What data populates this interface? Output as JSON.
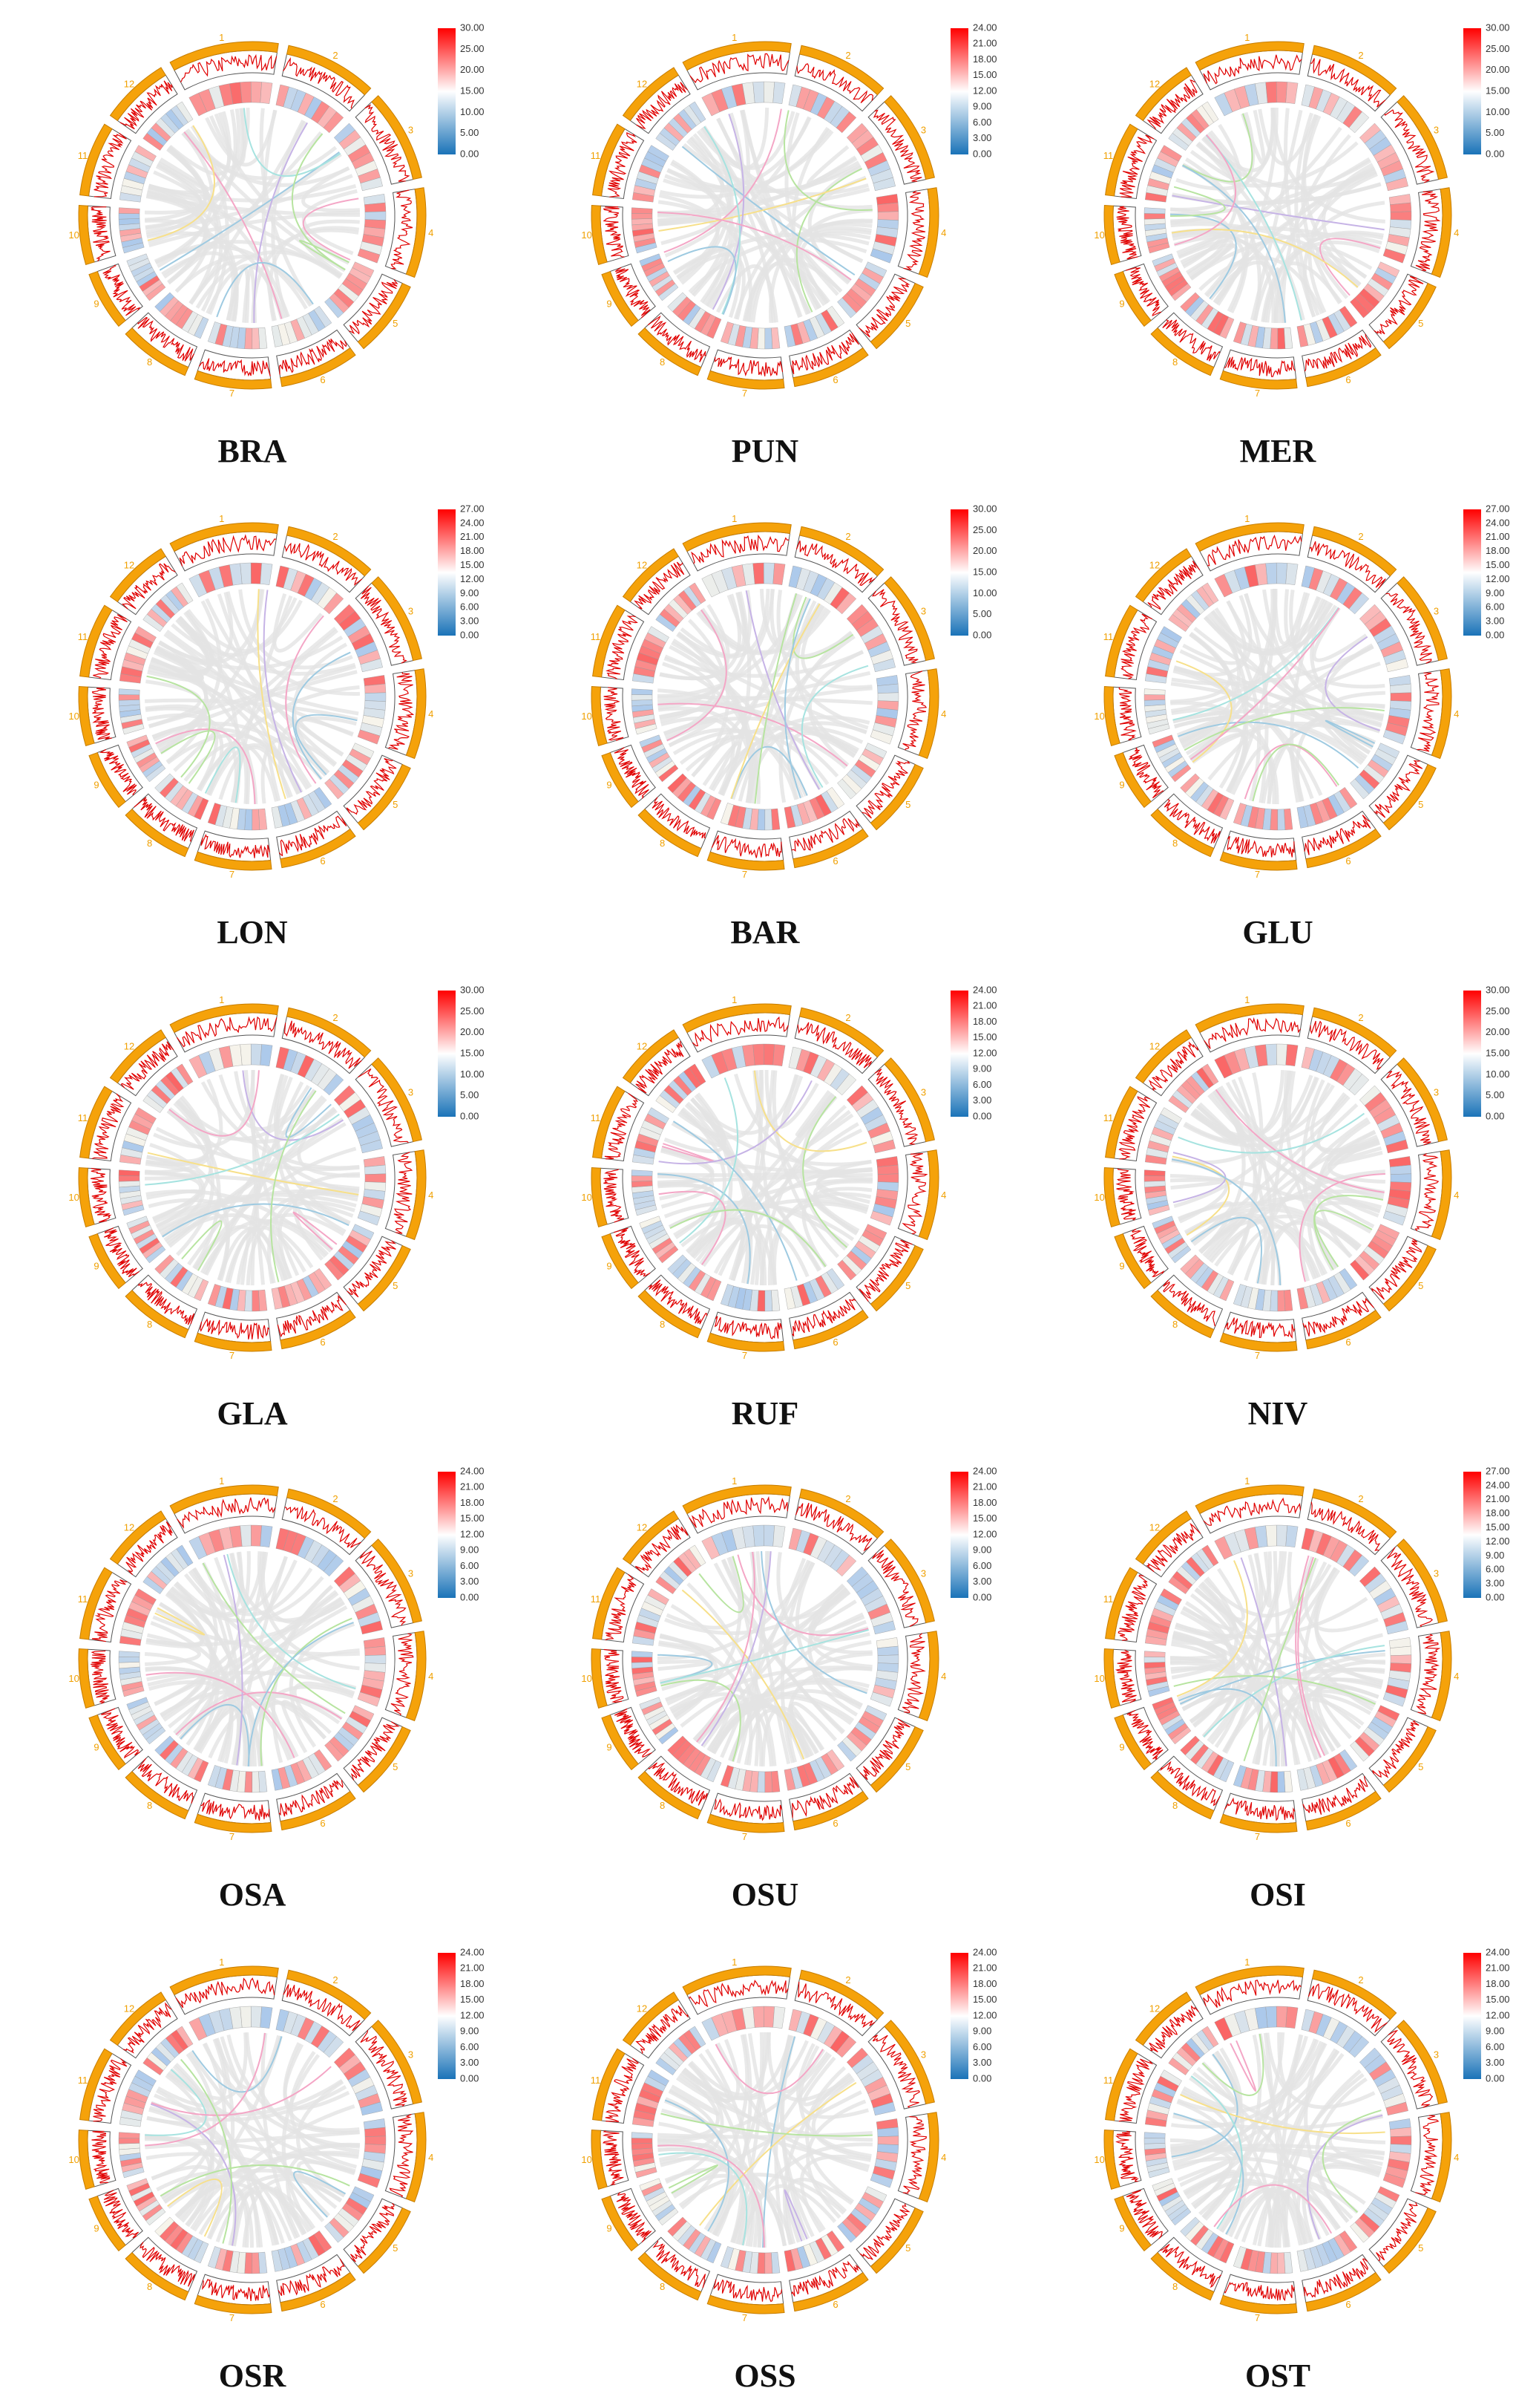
{
  "chromosomes": [
    "1",
    "2",
    "3",
    "4",
    "5",
    "6",
    "7",
    "8",
    "9",
    "10",
    "11",
    "12"
  ],
  "panels": [
    {
      "label": "BRA",
      "colorbar": [
        "30.00",
        "25.00",
        "20.00",
        "15.00",
        "10.00",
        "5.00",
        "0.00"
      ]
    },
    {
      "label": "PUN",
      "colorbar": [
        "24.00",
        "21.00",
        "18.00",
        "15.00",
        "12.00",
        "9.00",
        "6.00",
        "3.00",
        "0.00"
      ]
    },
    {
      "label": "MER",
      "colorbar": [
        "30.00",
        "25.00",
        "20.00",
        "15.00",
        "10.00",
        "5.00",
        "0.00"
      ]
    },
    {
      "label": "LON",
      "colorbar": [
        "27.00",
        "24.00",
        "21.00",
        "18.00",
        "15.00",
        "12.00",
        "9.00",
        "6.00",
        "3.00",
        "0.00"
      ]
    },
    {
      "label": "BAR",
      "colorbar": [
        "30.00",
        "25.00",
        "20.00",
        "15.00",
        "10.00",
        "5.00",
        "0.00"
      ]
    },
    {
      "label": "GLU",
      "colorbar": [
        "27.00",
        "24.00",
        "21.00",
        "18.00",
        "15.00",
        "12.00",
        "9.00",
        "6.00",
        "3.00",
        "0.00"
      ]
    },
    {
      "label": "GLA",
      "colorbar": [
        "30.00",
        "25.00",
        "20.00",
        "15.00",
        "10.00",
        "5.00",
        "0.00"
      ]
    },
    {
      "label": "RUF",
      "colorbar": [
        "24.00",
        "21.00",
        "18.00",
        "15.00",
        "12.00",
        "9.00",
        "6.00",
        "3.00",
        "0.00"
      ]
    },
    {
      "label": "NIV",
      "colorbar": [
        "30.00",
        "25.00",
        "20.00",
        "15.00",
        "10.00",
        "5.00",
        "0.00"
      ]
    },
    {
      "label": "OSA",
      "colorbar": [
        "24.00",
        "21.00",
        "18.00",
        "15.00",
        "12.00",
        "9.00",
        "6.00",
        "3.00",
        "0.00"
      ]
    },
    {
      "label": "OSU",
      "colorbar": [
        "24.00",
        "21.00",
        "18.00",
        "15.00",
        "12.00",
        "9.00",
        "6.00",
        "3.00",
        "0.00"
      ]
    },
    {
      "label": "OSI",
      "colorbar": [
        "27.00",
        "24.00",
        "21.00",
        "18.00",
        "15.00",
        "12.00",
        "9.00",
        "6.00",
        "3.00",
        "0.00"
      ]
    },
    {
      "label": "OSR",
      "colorbar": [
        "24.00",
        "21.00",
        "18.00",
        "15.00",
        "12.00",
        "9.00",
        "6.00",
        "3.00",
        "0.00"
      ]
    },
    {
      "label": "OSS",
      "colorbar": [
        "24.00",
        "21.00",
        "18.00",
        "15.00",
        "12.00",
        "9.00",
        "6.00",
        "3.00",
        "0.00"
      ]
    },
    {
      "label": "OST",
      "colorbar": [
        "24.00",
        "21.00",
        "18.00",
        "15.00",
        "12.00",
        "9.00",
        "6.00",
        "3.00",
        "0.00"
      ]
    }
  ]
}
